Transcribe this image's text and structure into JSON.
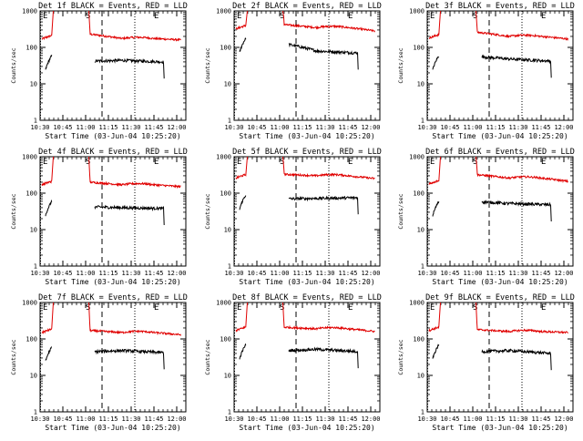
{
  "colors": {
    "events": "#000000",
    "lld": "#e00000",
    "axis": "#000000"
  },
  "chart_data": [
    {
      "type": "line",
      "title": "Det 1f BLACK = Events, RED = LLD",
      "xlabel": "Start Time (03-Jun-04 10:25:20)",
      "ylabel": "Counts/sec",
      "yscale": "log",
      "ylim": [
        1,
        1000
      ],
      "yticks": [
        "1",
        "10",
        "100",
        "1000"
      ],
      "xlim": [
        10.5,
        12.1
      ],
      "xticks": [
        "10:30",
        "10:45",
        "11:00",
        "11:15",
        "11:30",
        "11:45",
        "12:00"
      ],
      "markers": [
        "E",
        "S",
        "E"
      ],
      "events_level": [
        60,
        42,
        44,
        40
      ],
      "lld_level": [
        170,
        230,
        175,
        160
      ]
    },
    {
      "type": "line",
      "title": "Det 2f BLACK = Events, RED = LLD",
      "xlabel": "Start Time (03-Jun-04 10:25:20)",
      "ylabel": "Counts/sec",
      "yscale": "log",
      "ylim": [
        1,
        1000
      ],
      "yticks": [
        "1",
        "10",
        "100",
        "1000"
      ],
      "xlim": [
        10.5,
        12.1
      ],
      "xticks": [
        "10:30",
        "10:45",
        "11:00",
        "11:15",
        "11:30",
        "11:45",
        "12:00"
      ],
      "markers": [
        "E",
        "S",
        "E"
      ],
      "events_level": [
        180,
        120,
        80,
        70
      ],
      "lld_level": [
        320,
        420,
        350,
        280
      ]
    },
    {
      "type": "line",
      "title": "Det 3f BLACK = Events, RED = LLD",
      "xlabel": "Start Time (03-Jun-04 10:25:20)",
      "ylabel": "Counts/sec",
      "yscale": "log",
      "ylim": [
        1,
        1000
      ],
      "yticks": [
        "1",
        "10",
        "100",
        "1000"
      ],
      "xlim": [
        10.5,
        12.1
      ],
      "xticks": [
        "10:30",
        "10:45",
        "11:00",
        "11:15",
        "11:30",
        "11:45",
        "12:00"
      ],
      "markers": [
        "E",
        "S",
        "E"
      ],
      "events_level": [
        60,
        55,
        48,
        42
      ],
      "lld_level": [
        180,
        260,
        200,
        170
      ]
    },
    {
      "type": "line",
      "title": "Det 4f BLACK = Events, RED = LLD",
      "xlabel": "Start Time (03-Jun-04 10:25:20)",
      "ylabel": "Counts/sec",
      "yscale": "log",
      "ylim": [
        1,
        1000
      ],
      "yticks": [
        "1",
        "10",
        "100",
        "1000"
      ],
      "xlim": [
        10.5,
        12.1
      ],
      "xticks": [
        "10:30",
        "10:45",
        "11:00",
        "11:15",
        "11:30",
        "11:45",
        "12:00"
      ],
      "markers": [
        "E",
        "S",
        "E"
      ],
      "events_level": [
        60,
        42,
        40,
        38
      ],
      "lld_level": [
        170,
        200,
        170,
        150
      ]
    },
    {
      "type": "line",
      "title": "Det 5f BLACK = Events, RED = LLD",
      "xlabel": "Start Time (03-Jun-04 10:25:20)",
      "ylabel": "Counts/sec",
      "yscale": "log",
      "ylim": [
        1,
        1000
      ],
      "yticks": [
        "1",
        "10",
        "100",
        "1000"
      ],
      "xlim": [
        10.5,
        12.1
      ],
      "xticks": [
        "10:30",
        "10:45",
        "11:00",
        "11:15",
        "11:30",
        "11:45",
        "12:00"
      ],
      "markers": [
        "E",
        "S",
        "E"
      ],
      "events_level": [
        90,
        70,
        72,
        75
      ],
      "lld_level": [
        260,
        330,
        300,
        250
      ]
    },
    {
      "type": "line",
      "title": "Det 6f BLACK = Events, RED = LLD",
      "xlabel": "Start Time (03-Jun-04 10:25:20)",
      "ylabel": "Counts/sec",
      "yscale": "log",
      "ylim": [
        1,
        1000
      ],
      "yticks": [
        "1",
        "10",
        "100",
        "1000"
      ],
      "xlim": [
        10.5,
        12.1
      ],
      "xticks": [
        "10:30",
        "10:45",
        "11:00",
        "11:15",
        "11:30",
        "11:45",
        "12:00"
      ],
      "markers": [
        "E",
        "S",
        "E"
      ],
      "events_level": [
        60,
        58,
        52,
        48
      ],
      "lld_level": [
        180,
        320,
        260,
        210
      ]
    },
    {
      "type": "line",
      "title": "Det 7f BLACK = Events, RED = LLD",
      "xlabel": "Start Time (03-Jun-04 10:25:20)",
      "ylabel": "Counts/sec",
      "yscale": "log",
      "ylim": [
        1,
        1000
      ],
      "yticks": [
        "1",
        "10",
        "100",
        "1000"
      ],
      "xlim": [
        10.5,
        12.1
      ],
      "xticks": [
        "10:30",
        "10:45",
        "11:00",
        "11:15",
        "11:30",
        "11:45",
        "12:00"
      ],
      "markers": [
        "E",
        "S",
        "E"
      ],
      "events_level": [
        60,
        45,
        48,
        42
      ],
      "lld_level": [
        150,
        170,
        150,
        130
      ]
    },
    {
      "type": "line",
      "title": "Det 8f BLACK = Events, RED = LLD",
      "xlabel": "Start Time (03-Jun-04 10:25:20)",
      "ylabel": "Counts/sec",
      "yscale": "log",
      "ylim": [
        1,
        1000
      ],
      "yticks": [
        "1",
        "10",
        "100",
        "1000"
      ],
      "xlim": [
        10.5,
        12.1
      ],
      "xticks": [
        "10:30",
        "10:45",
        "11:00",
        "11:15",
        "11:30",
        "11:45",
        "12:00"
      ],
      "markers": [
        "E",
        "S",
        "E"
      ],
      "events_level": [
        70,
        48,
        52,
        45
      ],
      "lld_level": [
        170,
        210,
        190,
        160
      ]
    },
    {
      "type": "line",
      "title": "Det 9f BLACK = Events, RED = LLD",
      "xlabel": "Start Time (03-Jun-04 10:25:20)",
      "ylabel": "Counts/sec",
      "yscale": "log",
      "ylim": [
        1,
        1000
      ],
      "yticks": [
        "1",
        "10",
        "100",
        "1000"
      ],
      "xlim": [
        10.5,
        12.1
      ],
      "xticks": [
        "10:30",
        "10:45",
        "11:00",
        "11:15",
        "11:30",
        "11:45",
        "12:00"
      ],
      "markers": [
        "E",
        "S",
        "E"
      ],
      "events_level": [
        70,
        45,
        48,
        40
      ],
      "lld_level": [
        170,
        180,
        160,
        150
      ]
    }
  ]
}
